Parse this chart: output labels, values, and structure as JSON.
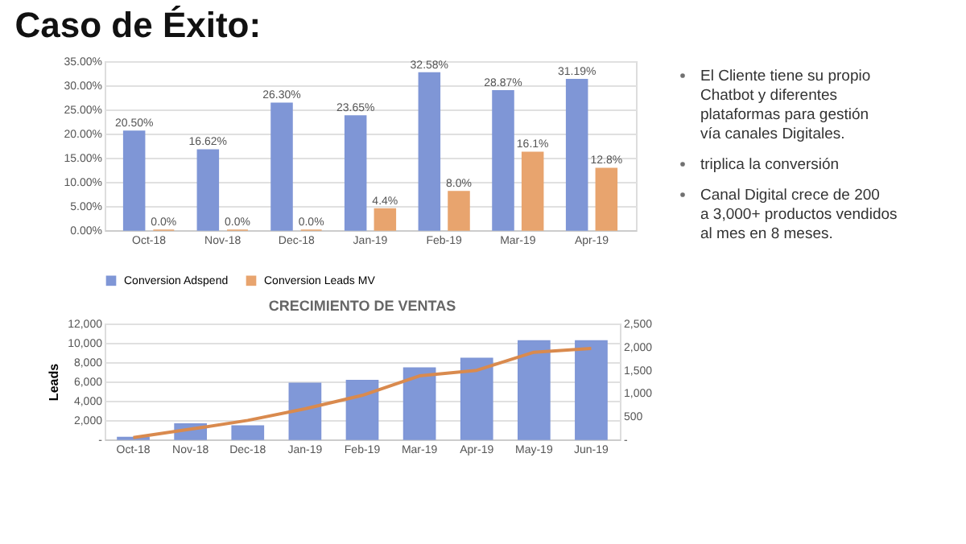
{
  "chart_data": [
    {
      "type": "bar",
      "title": "Caso de Éxito:",
      "categories": [
        "Oct-18",
        "Nov-18",
        "Dec-18",
        "Jan-19",
        "Feb-19",
        "Mar-19",
        "Apr-19"
      ],
      "series": [
        {
          "name": "Conversion Adspend",
          "color": "#7f96d6",
          "values": [
            20.5,
            16.62,
            26.3,
            23.65,
            32.58,
            28.87,
            31.19
          ],
          "value_labels": [
            "20.50%",
            "16.62%",
            "26.30%",
            "23.65%",
            "32.58%",
            "28.87%",
            "31.19%"
          ]
        },
        {
          "name": "Conversion Leads MV",
          "color": "#e8a46e",
          "values": [
            0,
            0,
            0,
            4.4,
            8.0,
            16.1,
            12.8
          ],
          "value_labels": [
            "0.0%",
            "0.0%",
            "0.0%",
            "4.4%",
            "8.0%",
            "16.1%",
            "12.8%"
          ]
        }
      ],
      "ylim": [
        0,
        35
      ],
      "yticks": [
        {
          "value": 0,
          "label": "0.00%"
        },
        {
          "value": 5,
          "label": "5.00%"
        },
        {
          "value": 10,
          "label": "10.00%"
        },
        {
          "value": 15,
          "label": "15.00%"
        },
        {
          "value": 20,
          "label": "20.00%"
        },
        {
          "value": 25,
          "label": "25.00%"
        },
        {
          "value": 30,
          "label": "30.00%"
        },
        {
          "value": 35,
          "label": "35.00%"
        }
      ],
      "grid": "y",
      "legend": "bottom"
    },
    {
      "type": "other",
      "annotations": [
        "El Cliente tiene su propio Chatbot y diferentes plataformas para gestión vía canales Digitales.",
        "triplica la conversión",
        "Canal Digital crece de 200 a 3,000+ productos vendidos al mes en 8 meses."
      ]
    },
    {
      "type": "bar",
      "title": "CRECIMIENTO DE VENTAS",
      "ylabel": "Leads",
      "categories": [
        "Oct-18",
        "Nov-18",
        "Dec-18",
        "Jan-19",
        "Feb-19",
        "Mar-19",
        "Apr-19",
        "May-19",
        "Jun-19"
      ],
      "series": [
        {
          "type": "bar",
          "color": "#8098d8",
          "values": [
            200,
            1600,
            1400,
            5800,
            6100,
            7400,
            8400,
            10200,
            10200
          ]
        },
        {
          "type": "line",
          "axis": "y2",
          "color": "#d98a4e",
          "values": [
            40,
            220,
            410,
            660,
            950,
            1370,
            1490,
            1880,
            1960
          ]
        }
      ],
      "ylim": [
        0,
        12000
      ],
      "yticks": [
        {
          "value": 0,
          "label": "-"
        },
        {
          "value": 2000,
          "label": "2,000"
        },
        {
          "value": 4000,
          "label": "4,000"
        },
        {
          "value": 6000,
          "label": "6,000"
        },
        {
          "value": 8000,
          "label": "8,000"
        },
        {
          "value": 10000,
          "label": "10,000"
        },
        {
          "value": 12000,
          "label": "12,000"
        }
      ],
      "y2lim": [
        0,
        2500
      ],
      "y2ticks": [
        {
          "value": 0,
          "label": "-"
        },
        {
          "value": 500,
          "label": "500"
        },
        {
          "value": 1000,
          "label": "1,000"
        },
        {
          "value": 1500,
          "label": "1,500"
        },
        {
          "value": 2000,
          "label": "2,000"
        },
        {
          "value": 2500,
          "label": "2,500"
        }
      ],
      "grid": "y",
      "legend": false,
      "line_style": "solid",
      "marker": "none"
    }
  ]
}
